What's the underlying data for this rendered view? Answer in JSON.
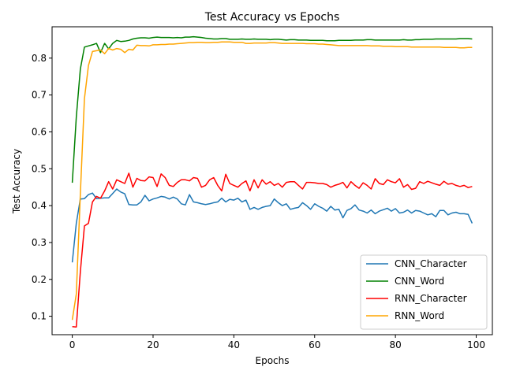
{
  "chart_data": {
    "type": "line",
    "title": "Test Accuracy vs Epochs",
    "xlabel": "Epochs",
    "ylabel": "Test Accuracy",
    "xlim": [
      -5,
      104
    ],
    "ylim": [
      0.05,
      0.885
    ],
    "xticks": [
      0,
      20,
      40,
      60,
      80,
      100
    ],
    "yticks": [
      0.1,
      0.2,
      0.3,
      0.4,
      0.5,
      0.6,
      0.7,
      0.8
    ],
    "legend_position": "lower-right",
    "grid": false,
    "x_start": 0,
    "series": [
      {
        "name": "CNN_Character",
        "color": "#1f77b4",
        "values": [
          0.246,
          0.352,
          0.418,
          0.419,
          0.43,
          0.434,
          0.419,
          0.42,
          0.421,
          0.421,
          0.433,
          0.445,
          0.437,
          0.432,
          0.403,
          0.402,
          0.402,
          0.41,
          0.428,
          0.413,
          0.418,
          0.421,
          0.425,
          0.423,
          0.418,
          0.423,
          0.418,
          0.405,
          0.402,
          0.43,
          0.41,
          0.408,
          0.405,
          0.403,
          0.405,
          0.408,
          0.41,
          0.42,
          0.41,
          0.417,
          0.415,
          0.42,
          0.41,
          0.415,
          0.39,
          0.395,
          0.39,
          0.395,
          0.398,
          0.4,
          0.418,
          0.408,
          0.4,
          0.405,
          0.39,
          0.393,
          0.395,
          0.408,
          0.4,
          0.39,
          0.405,
          0.398,
          0.393,
          0.385,
          0.398,
          0.388,
          0.39,
          0.367,
          0.387,
          0.392,
          0.402,
          0.388,
          0.385,
          0.38,
          0.388,
          0.378,
          0.385,
          0.389,
          0.393,
          0.385,
          0.392,
          0.38,
          0.382,
          0.388,
          0.38,
          0.387,
          0.385,
          0.38,
          0.375,
          0.378,
          0.37,
          0.387,
          0.387,
          0.375,
          0.38,
          0.382,
          0.378,
          0.378,
          0.376,
          0.352
        ]
      },
      {
        "name": "CNN_Word",
        "color": "#008000",
        "values": [
          0.462,
          0.64,
          0.77,
          0.83,
          0.833,
          0.836,
          0.84,
          0.815,
          0.84,
          0.825,
          0.84,
          0.848,
          0.845,
          0.846,
          0.848,
          0.852,
          0.854,
          0.855,
          0.855,
          0.854,
          0.856,
          0.857,
          0.856,
          0.856,
          0.856,
          0.855,
          0.856,
          0.855,
          0.857,
          0.857,
          0.858,
          0.857,
          0.856,
          0.854,
          0.853,
          0.852,
          0.852,
          0.853,
          0.853,
          0.851,
          0.851,
          0.851,
          0.852,
          0.851,
          0.851,
          0.852,
          0.851,
          0.851,
          0.851,
          0.85,
          0.851,
          0.851,
          0.85,
          0.849,
          0.85,
          0.85,
          0.849,
          0.849,
          0.849,
          0.848,
          0.848,
          0.848,
          0.848,
          0.847,
          0.847,
          0.847,
          0.848,
          0.848,
          0.848,
          0.848,
          0.849,
          0.849,
          0.849,
          0.85,
          0.85,
          0.849,
          0.849,
          0.849,
          0.849,
          0.849,
          0.849,
          0.849,
          0.85,
          0.849,
          0.849,
          0.85,
          0.85,
          0.851,
          0.851,
          0.851,
          0.852,
          0.852,
          0.852,
          0.852,
          0.852,
          0.852,
          0.853,
          0.853,
          0.853,
          0.852
        ]
      },
      {
        "name": "RNN_Character",
        "color": "#ff0000",
        "values": [
          0.072,
          0.071,
          0.22,
          0.345,
          0.352,
          0.41,
          0.425,
          0.42,
          0.44,
          0.465,
          0.445,
          0.47,
          0.465,
          0.46,
          0.488,
          0.45,
          0.474,
          0.468,
          0.467,
          0.478,
          0.476,
          0.452,
          0.486,
          0.476,
          0.455,
          0.452,
          0.463,
          0.47,
          0.47,
          0.467,
          0.476,
          0.474,
          0.45,
          0.455,
          0.47,
          0.476,
          0.455,
          0.44,
          0.485,
          0.46,
          0.455,
          0.45,
          0.46,
          0.467,
          0.44,
          0.47,
          0.448,
          0.47,
          0.458,
          0.465,
          0.455,
          0.46,
          0.45,
          0.463,
          0.465,
          0.465,
          0.455,
          0.445,
          0.463,
          0.463,
          0.462,
          0.46,
          0.46,
          0.457,
          0.45,
          0.455,
          0.458,
          0.463,
          0.448,
          0.465,
          0.455,
          0.447,
          0.462,
          0.455,
          0.445,
          0.473,
          0.46,
          0.457,
          0.47,
          0.465,
          0.462,
          0.473,
          0.45,
          0.457,
          0.444,
          0.447,
          0.465,
          0.46,
          0.466,
          0.462,
          0.458,
          0.455,
          0.466,
          0.458,
          0.46,
          0.455,
          0.452,
          0.455,
          0.449,
          0.452
        ]
      },
      {
        "name": "RNN_Word",
        "color": "#ffa500",
        "values": [
          0.09,
          0.16,
          0.43,
          0.69,
          0.78,
          0.818,
          0.82,
          0.822,
          0.812,
          0.826,
          0.822,
          0.826,
          0.824,
          0.815,
          0.824,
          0.822,
          0.835,
          0.834,
          0.834,
          0.833,
          0.836,
          0.836,
          0.837,
          0.837,
          0.838,
          0.838,
          0.839,
          0.84,
          0.841,
          0.842,
          0.842,
          0.843,
          0.843,
          0.842,
          0.842,
          0.843,
          0.843,
          0.844,
          0.844,
          0.844,
          0.843,
          0.843,
          0.843,
          0.84,
          0.84,
          0.841,
          0.841,
          0.841,
          0.841,
          0.842,
          0.842,
          0.841,
          0.84,
          0.84,
          0.84,
          0.84,
          0.84,
          0.84,
          0.839,
          0.839,
          0.839,
          0.838,
          0.838,
          0.837,
          0.836,
          0.835,
          0.834,
          0.834,
          0.834,
          0.834,
          0.834,
          0.834,
          0.834,
          0.834,
          0.833,
          0.833,
          0.833,
          0.832,
          0.832,
          0.832,
          0.831,
          0.831,
          0.831,
          0.831,
          0.83,
          0.83,
          0.83,
          0.83,
          0.83,
          0.83,
          0.83,
          0.83,
          0.829,
          0.829,
          0.829,
          0.829,
          0.828,
          0.828,
          0.829,
          0.829
        ]
      }
    ]
  }
}
